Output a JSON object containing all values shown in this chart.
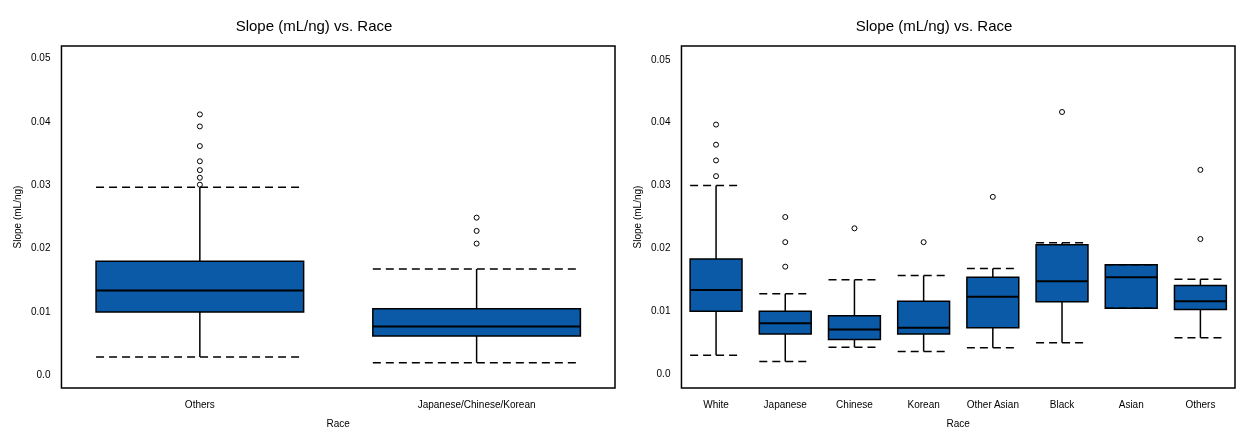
{
  "chart_data": [
    {
      "type": "box",
      "title": "Slope (mL/ng) vs. Race",
      "xlabel": "Race",
      "ylabel": "Slope (mL/ng)",
      "color": "#0a5aa8",
      "grid": false,
      "ylim": [
        -0.002,
        0.052
      ],
      "yticks": [
        {
          "value": 0,
          "label": "0.0"
        },
        0.01,
        0.02,
        0.03,
        0.04,
        0.05
      ],
      "categories": [
        "Others",
        "Japanese/Chinese/Korean"
      ],
      "boxes": [
        {
          "low": 0.0029,
          "q1": 0.01,
          "median": 0.0134,
          "q3": 0.018,
          "high": 0.0297,
          "outliers": [
            0.0412,
            0.0393,
            0.0362,
            0.0338,
            0.0324,
            0.0312,
            0.0301
          ]
        },
        {
          "low": 0.002,
          "q1": 0.0062,
          "median": 0.0077,
          "q3": 0.0105,
          "high": 0.0168,
          "outliers": [
            0.0249,
            0.0228,
            0.0208
          ]
        }
      ]
    },
    {
      "type": "box",
      "title": "Slope (mL/ng) vs. Race",
      "xlabel": "Race",
      "ylabel": "Slope (mL/ng)",
      "color": "#0a5aa8",
      "grid": false,
      "ylim": [
        -0.0022,
        0.0522
      ],
      "yticks": [
        {
          "value": 0,
          "label": "0.0"
        },
        0.01,
        0.02,
        0.03,
        0.04,
        0.05
      ],
      "categories": [
        "White",
        "Japanese",
        "Chinese",
        "Korean",
        "Other Asian",
        "Black",
        "Asian",
        "Others"
      ],
      "boxes": [
        {
          "low": 0.003,
          "q1": 0.01,
          "median": 0.0134,
          "q3": 0.0183,
          "high": 0.03,
          "outliers": [
            0.0397,
            0.0365,
            0.034,
            0.0315
          ]
        },
        {
          "low": 0.002,
          "q1": 0.0064,
          "median": 0.0081,
          "q3": 0.01,
          "high": 0.0128,
          "outliers": [
            0.025,
            0.021,
            0.0171
          ]
        },
        {
          "low": 0.0043,
          "q1": 0.0055,
          "median": 0.0071,
          "q3": 0.0093,
          "high": 0.015,
          "outliers": [
            0.0232
          ]
        },
        {
          "low": 0.0036,
          "q1": 0.0064,
          "median": 0.0074,
          "q3": 0.0116,
          "high": 0.0157,
          "outliers": [
            0.021
          ]
        },
        {
          "low": 0.0042,
          "q1": 0.0074,
          "median": 0.0123,
          "q3": 0.0154,
          "high": 0.0168,
          "outliers": [
            0.0282
          ]
        },
        {
          "low": 0.005,
          "q1": 0.0115,
          "median": 0.0148,
          "q3": 0.0206,
          "high": 0.0209,
          "outliers": [
            0.0417
          ]
        },
        {
          "low": 0.0105,
          "q1": 0.0105,
          "median": 0.0154,
          "q3": 0.0174,
          "high": 0.0174
        },
        {
          "low": 0.0058,
          "q1": 0.0103,
          "median": 0.0116,
          "q3": 0.0141,
          "high": 0.0151,
          "outliers": [
            0.0325,
            0.0215
          ]
        }
      ]
    }
  ]
}
